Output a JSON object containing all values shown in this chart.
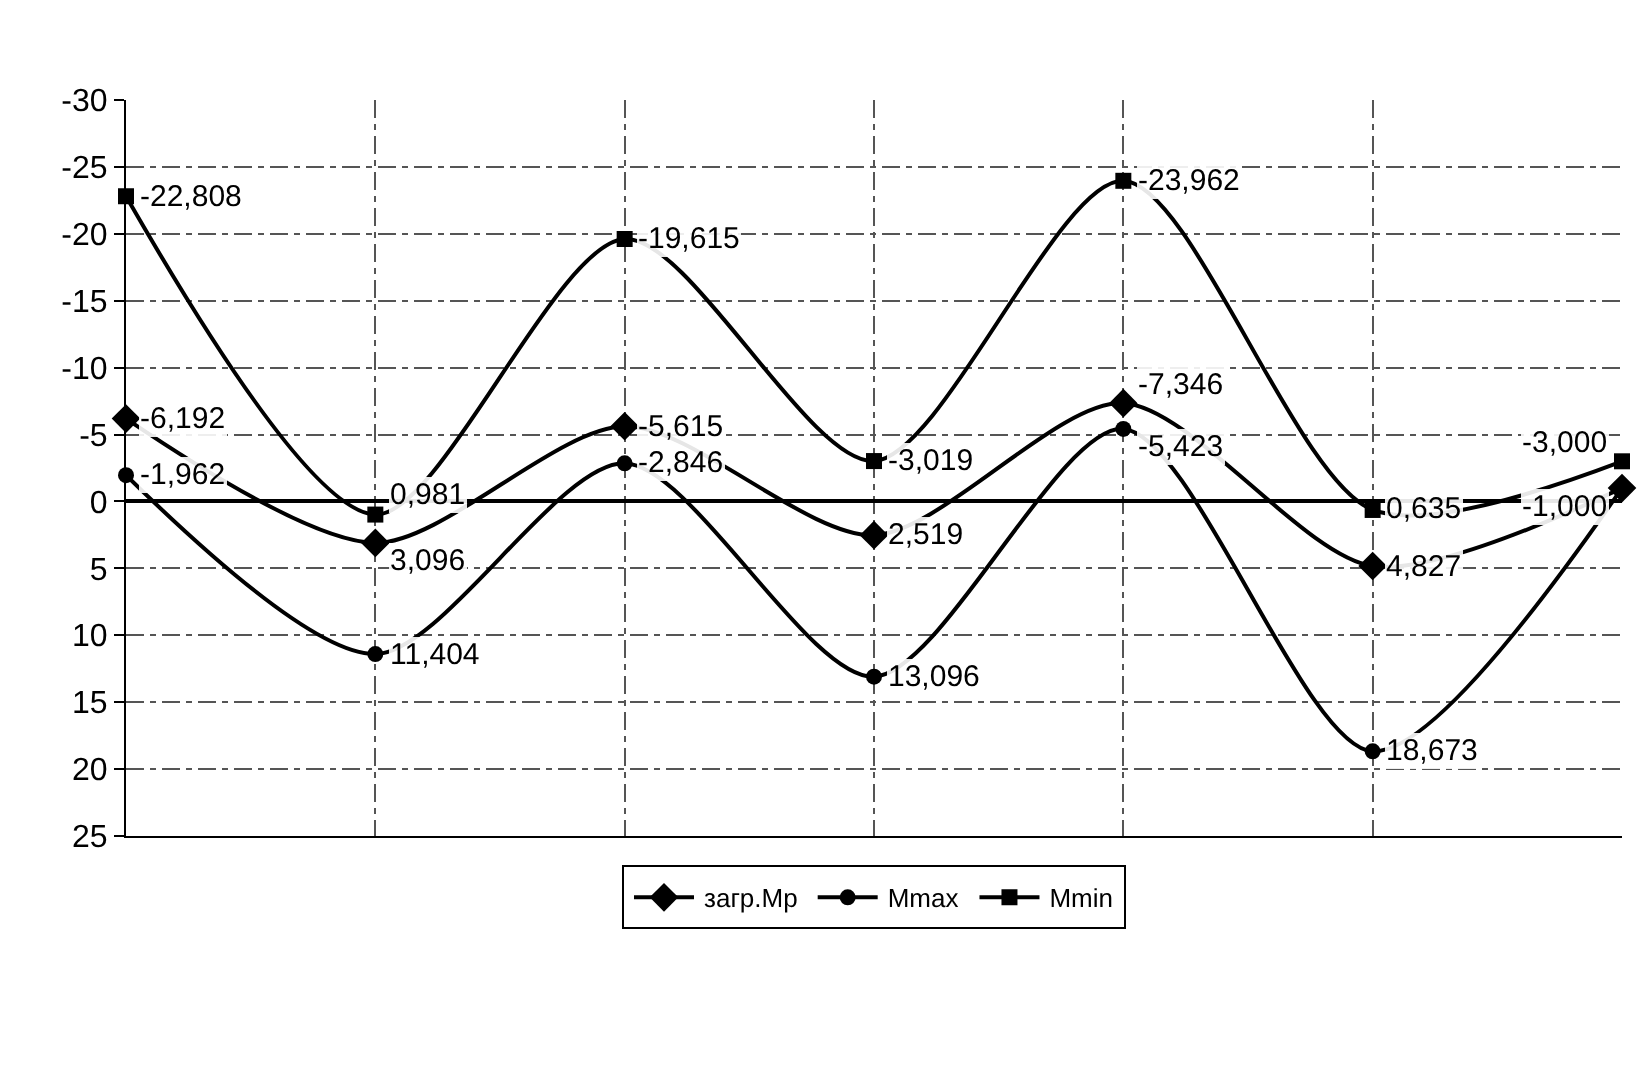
{
  "chart_data": {
    "type": "line",
    "categories": [
      null,
      null,
      null,
      null,
      null,
      null,
      null
    ],
    "ylim": [
      25,
      -30
    ],
    "yticks": [
      -30,
      -25,
      -20,
      -15,
      -10,
      -5,
      0,
      5,
      10,
      15,
      20,
      25
    ],
    "grid": true,
    "legend": "bottom",
    "line_style": "solid",
    "data_labels": true,
    "tick_labels": "y",
    "series": [
      {
        "name": "загр.Мр",
        "color": "#000000",
        "marker": "diamond",
        "values": [
          -6.192,
          3.096,
          -5.615,
          2.519,
          -7.346,
          4.827,
          -1.0
        ],
        "value_labels": [
          "-6,192",
          "3,096",
          "-5,615",
          "2,519",
          "-7,346",
          "4,827",
          "-1,000"
        ]
      },
      {
        "name": "Mmax",
        "color": "#000000",
        "marker": "circle",
        "values": [
          -1.962,
          11.404,
          -2.846,
          13.096,
          -5.423,
          18.673,
          -1.0
        ],
        "value_labels": [
          "-1,962",
          "11,404",
          "-2,846",
          "13,096",
          "-5,423",
          "18,673",
          null
        ]
      },
      {
        "name": "Mmin",
        "color": "#000000",
        "marker": "square",
        "values": [
          -22.808,
          0.981,
          -19.615,
          -3.019,
          -23.962,
          0.635,
          -3.0
        ],
        "value_labels": [
          "-22,808",
          "0,981",
          "-19,615",
          "-3,019",
          "-23,962",
          "0,635",
          "-3,000"
        ]
      }
    ]
  }
}
